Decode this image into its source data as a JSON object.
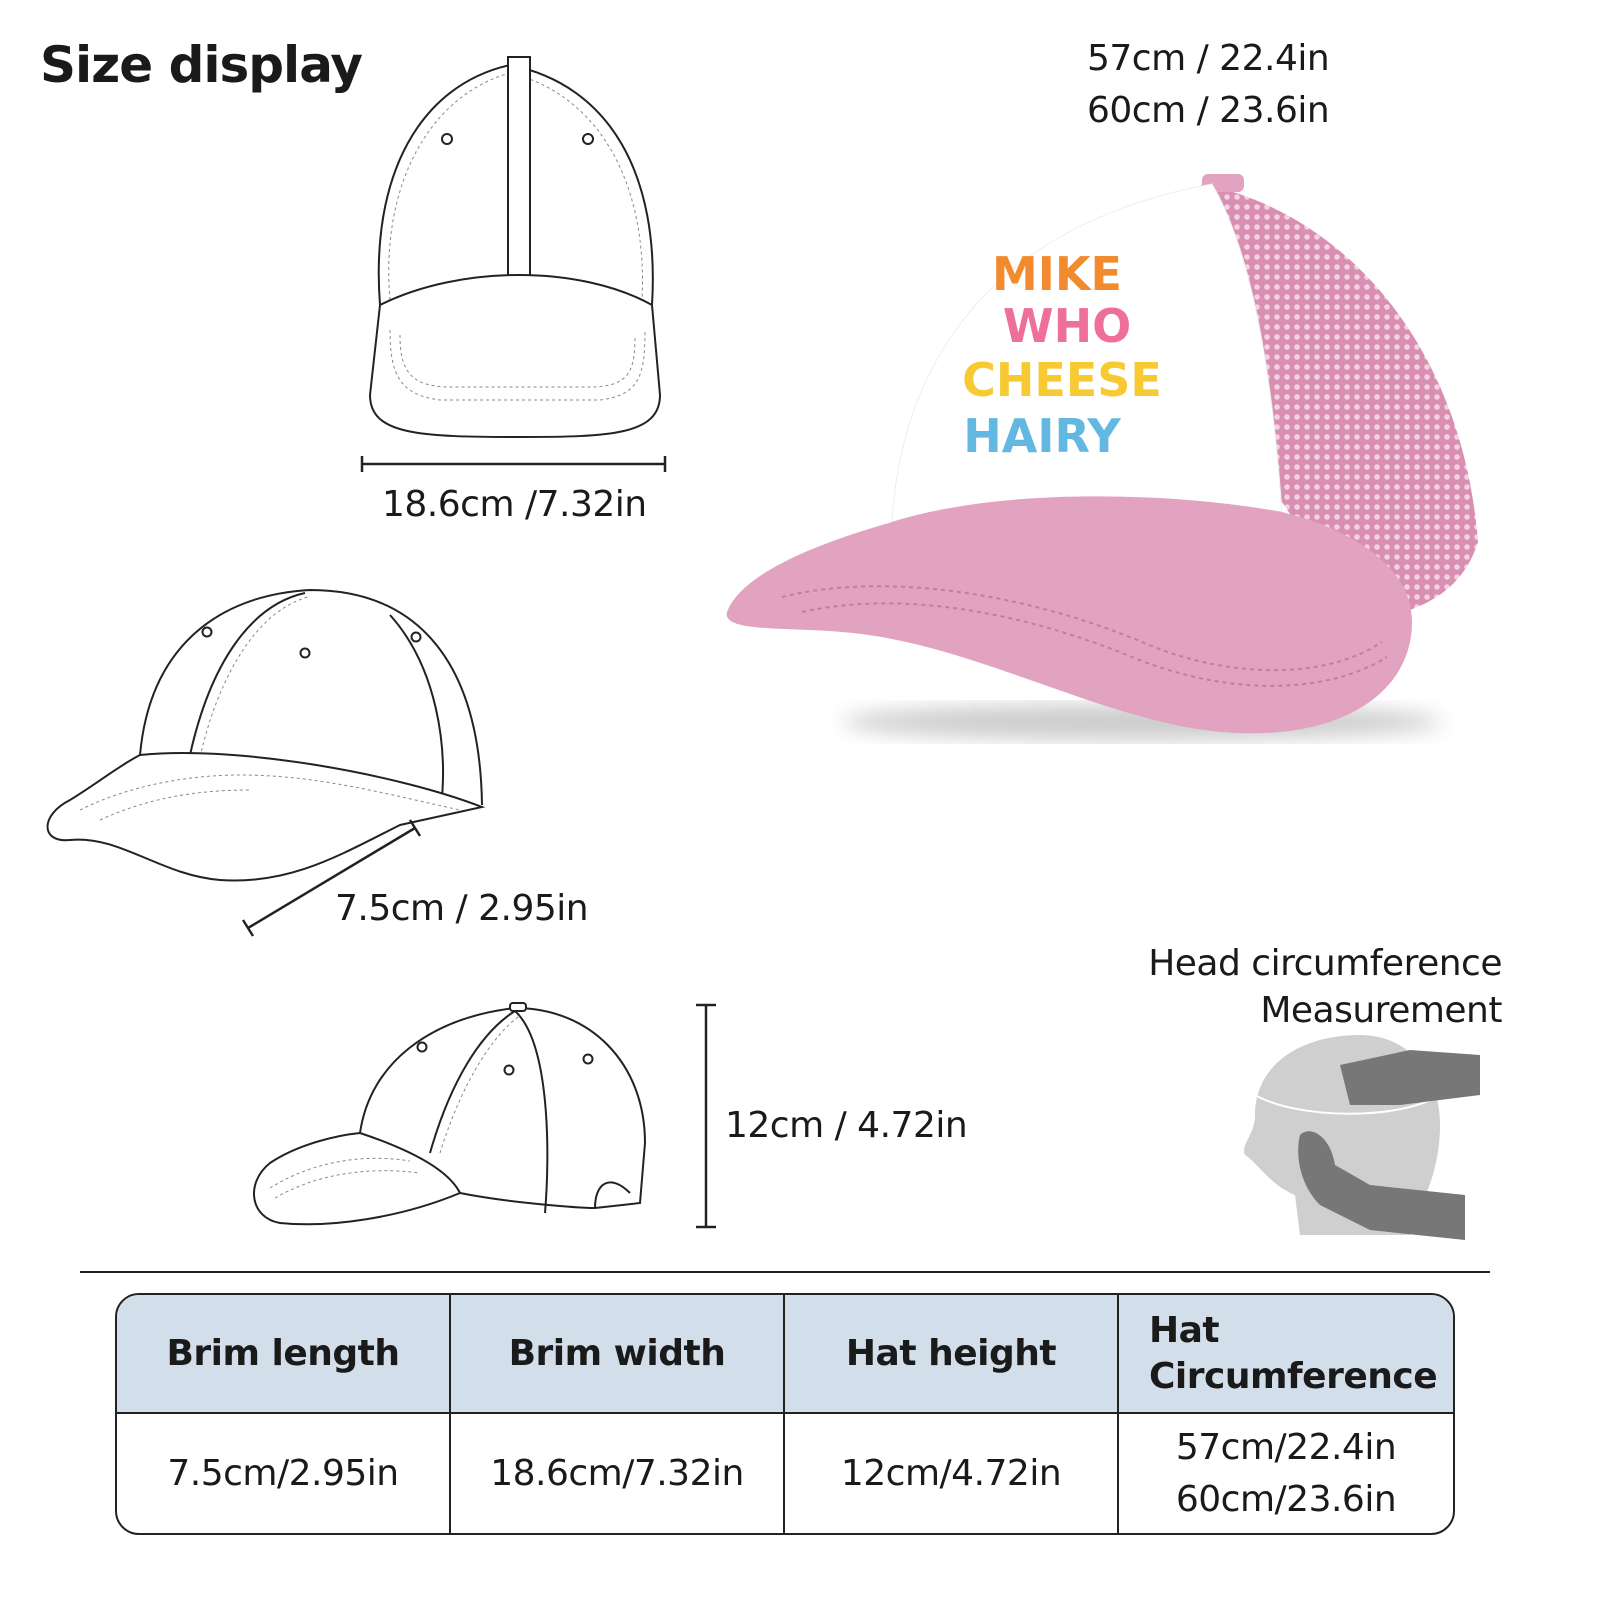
{
  "title": "Size display",
  "circumference_labels": [
    "57cm / 22.4in",
    "60cm / 23.6in"
  ],
  "brim_width_label": "18.6cm /7.32in",
  "brim_length_label": "7.5cm / 2.95in",
  "hat_height_label": "12cm / 4.72in",
  "head_measurement": {
    "line1": "Head circumference",
    "line2": "Measurement"
  },
  "hat_print": {
    "words": [
      "MIKE",
      "WHO",
      "CHEESE",
      "HAIRY"
    ],
    "colors": [
      "#f28a2e",
      "#ee6f9c",
      "#f7c933",
      "#62b8e0"
    ]
  },
  "colors": {
    "hat_pink": "#e2a3c0",
    "hat_white": "#ffffff",
    "table_header": "#d3deeb"
  },
  "table": {
    "headers": [
      "Brim length",
      "Brim width",
      "Hat height",
      "Hat",
      "Circumference"
    ],
    "values": [
      "7.5cm/2.95in",
      "18.6cm/7.32in",
      "12cm/4.72in",
      "57cm/22.4in",
      "60cm/23.6in"
    ]
  }
}
